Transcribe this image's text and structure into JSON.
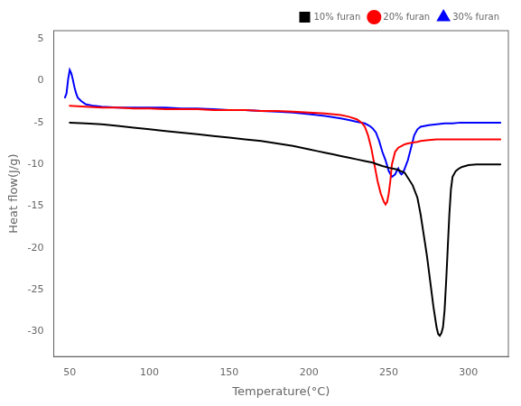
{
  "chart_data": {
    "type": "line",
    "xlabel": "Temperature(°C)",
    "ylabel": "Heat flow(J/g)",
    "xlim": [
      40,
      325
    ],
    "ylim": [
      -33,
      6
    ],
    "xticks": [
      50,
      100,
      150,
      200,
      250,
      300
    ],
    "yticks": [
      5,
      0,
      -5,
      -10,
      -15,
      -20,
      -25,
      -30
    ],
    "grid": false,
    "legend": "upper right",
    "series": [
      {
        "name": "10% furan",
        "color": "black",
        "marker": "square",
        "x": [
          50,
          60,
          70,
          80,
          90,
          100,
          110,
          120,
          130,
          140,
          150,
          160,
          170,
          180,
          190,
          200,
          205,
          210,
          215,
          220,
          225,
          230,
          235,
          240,
          243,
          246,
          250,
          255,
          260,
          265,
          268,
          270,
          272,
          274,
          276,
          278,
          280,
          281,
          282,
          283,
          284,
          285,
          286,
          287,
          288,
          289,
          290,
          292,
          294,
          296,
          298,
          300,
          305,
          310,
          315,
          320
        ],
        "values": [
          -5.0,
          -5.1,
          -5.2,
          -5.4,
          -5.6,
          -5.8,
          -6.0,
          -6.2,
          -6.4,
          -6.6,
          -6.8,
          -7.0,
          -7.2,
          -7.5,
          -7.8,
          -8.2,
          -8.4,
          -8.6,
          -8.8,
          -9.0,
          -9.2,
          -9.4,
          -9.6,
          -9.8,
          -10.0,
          -10.2,
          -10.4,
          -10.6,
          -11.0,
          -12.5,
          -14.0,
          -16.0,
          -18.5,
          -21.0,
          -24.0,
          -27.0,
          -29.5,
          -30.3,
          -30.5,
          -30.2,
          -29.5,
          -27.5,
          -24.0,
          -20.0,
          -16.0,
          -13.0,
          -11.5,
          -10.8,
          -10.5,
          -10.3,
          -10.2,
          -10.1,
          -10.0,
          -10.0,
          -10.0,
          -10.0
        ]
      },
      {
        "name": "20% furan",
        "color": "red",
        "marker": "circle",
        "x": [
          50,
          60,
          70,
          80,
          90,
          100,
          110,
          120,
          130,
          140,
          150,
          160,
          170,
          180,
          190,
          200,
          210,
          220,
          225,
          230,
          233,
          235,
          237,
          239,
          241,
          243,
          245,
          247,
          248,
          249,
          250,
          251,
          252,
          254,
          256,
          258,
          260,
          262,
          265,
          268,
          270,
          275,
          280,
          285,
          290,
          295,
          300,
          305,
          310,
          315,
          320
        ],
        "values": [
          -3.0,
          -3.1,
          -3.2,
          -3.2,
          -3.3,
          -3.3,
          -3.4,
          -3.4,
          -3.4,
          -3.5,
          -3.5,
          -3.5,
          -3.6,
          -3.6,
          -3.7,
          -3.8,
          -3.9,
          -4.1,
          -4.3,
          -4.6,
          -5.0,
          -5.5,
          -6.5,
          -8.0,
          -10.0,
          -12.0,
          -13.5,
          -14.5,
          -14.8,
          -14.5,
          -13.5,
          -12.0,
          -10.0,
          -8.5,
          -8.0,
          -7.8,
          -7.6,
          -7.5,
          -7.4,
          -7.3,
          -7.2,
          -7.1,
          -7.0,
          -7.0,
          -7.0,
          -7.0,
          -7.0,
          -7.0,
          -7.0,
          -7.0,
          -7.0
        ]
      },
      {
        "name": "30% furan",
        "color": "blue",
        "marker": "triangle",
        "x": [
          47,
          48,
          49,
          50,
          51,
          52,
          53,
          54,
          55,
          57,
          60,
          65,
          70,
          80,
          90,
          100,
          110,
          120,
          130,
          140,
          150,
          160,
          170,
          180,
          190,
          200,
          210,
          220,
          225,
          230,
          235,
          238,
          240,
          242,
          244,
          246,
          248,
          250,
          252,
          254,
          255,
          256,
          257,
          258,
          259,
          260,
          262,
          264,
          266,
          268,
          270,
          275,
          280,
          285,
          290,
          295,
          300,
          305,
          310,
          315,
          320
        ],
        "values": [
          -2.0,
          -1.5,
          0.2,
          1.3,
          0.9,
          0.1,
          -0.8,
          -1.5,
          -2.0,
          -2.4,
          -2.8,
          -3.0,
          -3.1,
          -3.2,
          -3.2,
          -3.2,
          -3.2,
          -3.3,
          -3.3,
          -3.4,
          -3.5,
          -3.5,
          -3.6,
          -3.7,
          -3.8,
          -4.0,
          -4.2,
          -4.5,
          -4.7,
          -4.9,
          -5.1,
          -5.4,
          -5.7,
          -6.2,
          -7.2,
          -8.5,
          -9.5,
          -10.8,
          -11.5,
          -11.2,
          -10.8,
          -10.5,
          -11.0,
          -11.2,
          -11.0,
          -10.5,
          -9.5,
          -8.0,
          -6.5,
          -5.8,
          -5.5,
          -5.3,
          -5.2,
          -5.1,
          -5.1,
          -5.0,
          -5.0,
          -5.0,
          -5.0,
          -5.0,
          -5.0
        ]
      }
    ]
  }
}
